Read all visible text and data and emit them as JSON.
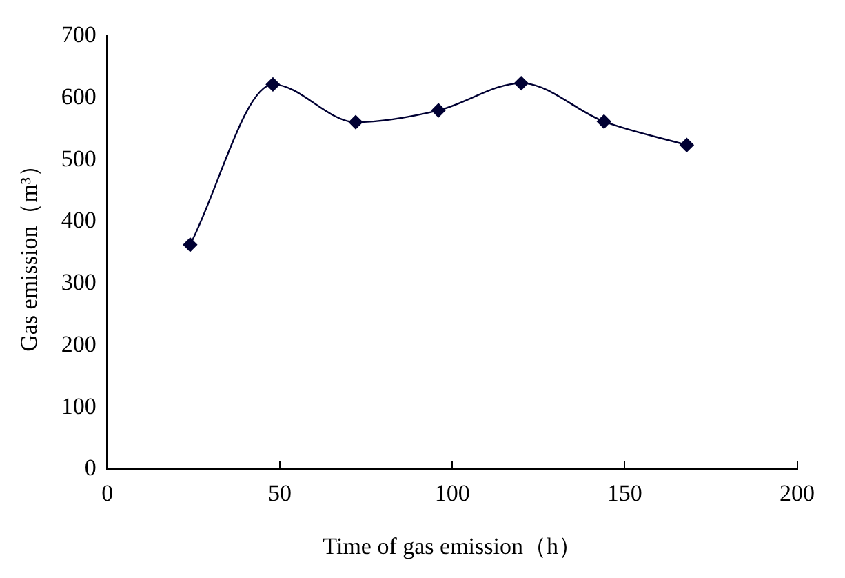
{
  "chart_data": {
    "type": "line",
    "xlabel": "Time of gas emission（h）",
    "ylabel": "Gas emission（m³）",
    "x": [
      24,
      48,
      72,
      96,
      120,
      144,
      168
    ],
    "series": [
      {
        "color": "#000033",
        "values": [
          363,
          622,
          561,
          580,
          624,
          562,
          524
        ]
      }
    ],
    "xlim": [
      0,
      200
    ],
    "xticks": [
      0,
      50,
      100,
      150,
      200
    ],
    "ylim": [
      0,
      700
    ],
    "yticks": [
      0,
      100,
      200,
      300,
      400,
      500,
      600,
      700
    ],
    "grid": false,
    "legend": false,
    "marker": "diamond",
    "line_style": "solid"
  }
}
